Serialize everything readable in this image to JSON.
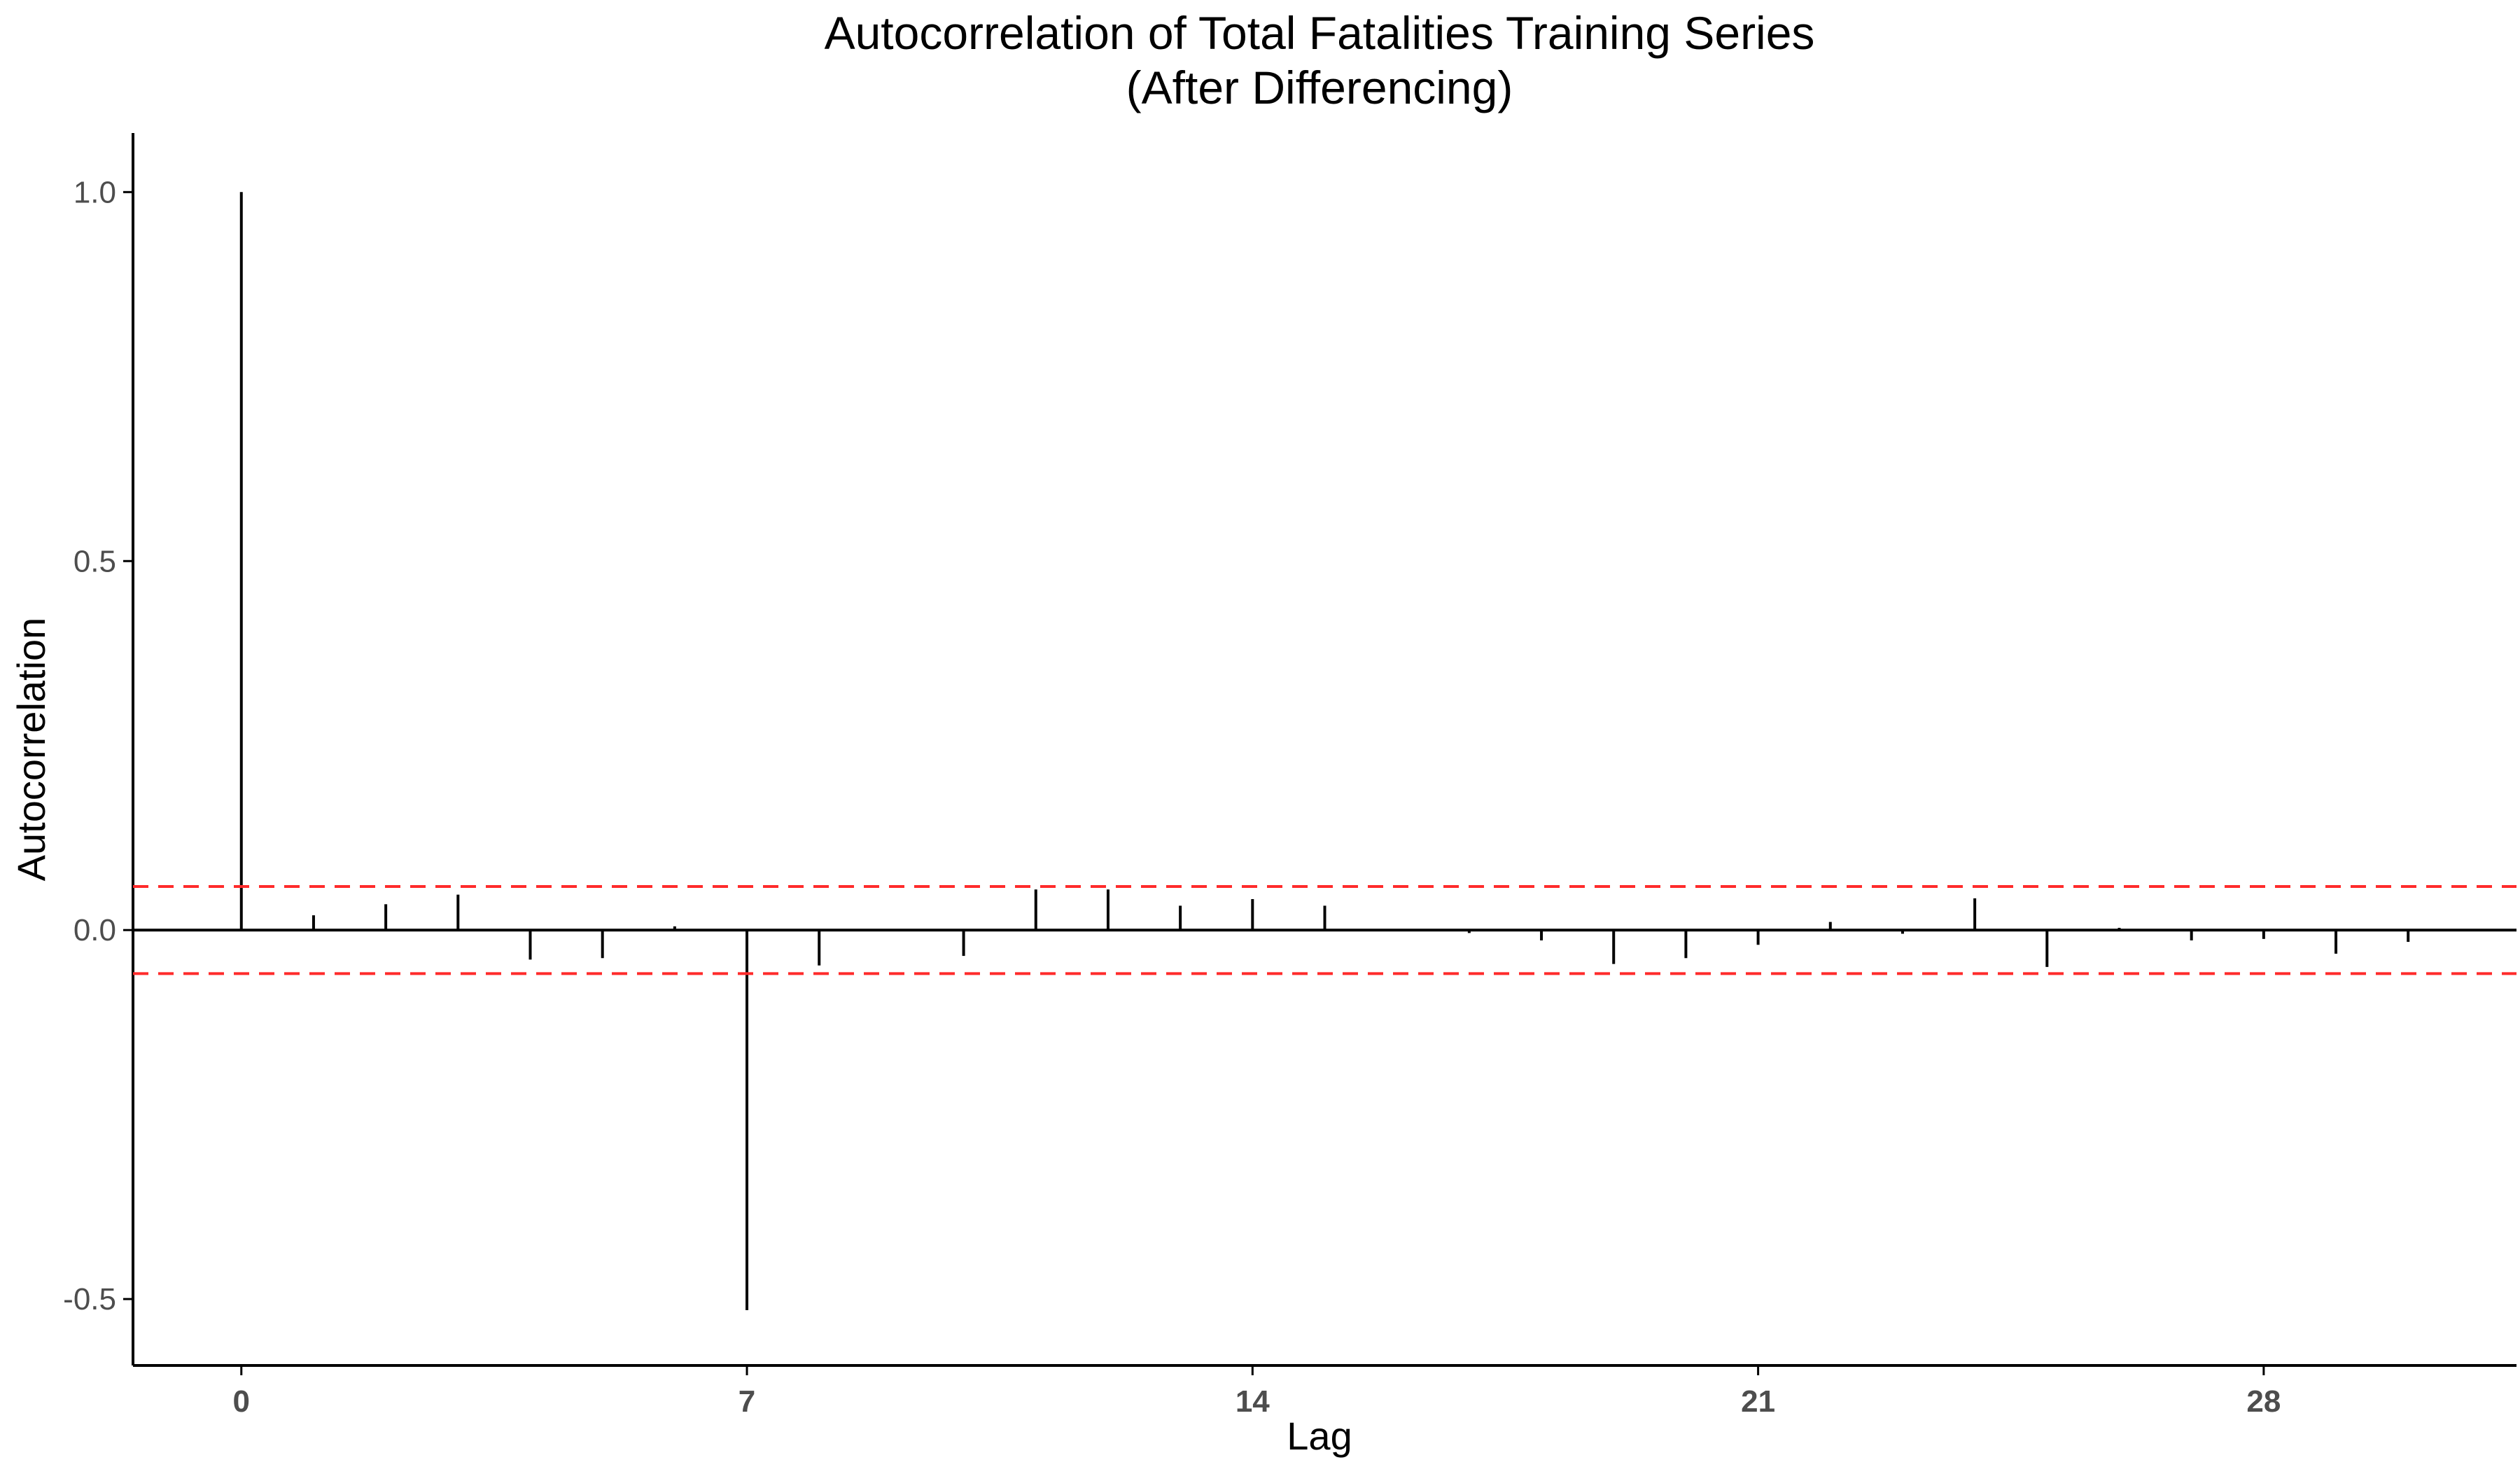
{
  "chart_data": {
    "type": "bar",
    "title": [
      "Autocorrelation of Total Fatalities Training Series",
      "(After Differencing)"
    ],
    "xlabel": "Lag",
    "ylabel": "Autocorrelation",
    "x_ticks": [
      "0",
      "7",
      "14",
      "21",
      "28"
    ],
    "y_ticks": [
      "-0.5",
      "0.0",
      "0.5",
      "1.0"
    ],
    "xlim": [
      -1.5,
      31.5
    ],
    "ylim": [
      -0.59,
      1.08
    ],
    "grid": false,
    "series": [
      {
        "lags": [
          0,
          1,
          2,
          3,
          4,
          5,
          6,
          7,
          8,
          9,
          10,
          11,
          12,
          13,
          14,
          15,
          16,
          17,
          18,
          19,
          20,
          21,
          22,
          23,
          24,
          25,
          26,
          27,
          28,
          29,
          30
        ],
        "values": [
          1.0,
          0.02,
          0.035,
          0.048,
          -0.04,
          -0.038,
          0.005,
          -0.515,
          -0.048,
          0.0,
          -0.035,
          0.055,
          0.055,
          0.033,
          0.042,
          0.033,
          0.0,
          -0.004,
          -0.014,
          -0.046,
          -0.038,
          -0.02,
          0.011,
          -0.005,
          0.043,
          -0.05,
          0.003,
          -0.014,
          -0.012,
          -0.032,
          -0.016
        ]
      }
    ],
    "confidence_bounds": [
      0.059,
      -0.059
    ],
    "colors": {
      "bars": "#000000",
      "zero_line": "#000000",
      "confidence": "#ff2b2b",
      "axis": "#000000",
      "tick_label": "#4d4d4d"
    }
  }
}
